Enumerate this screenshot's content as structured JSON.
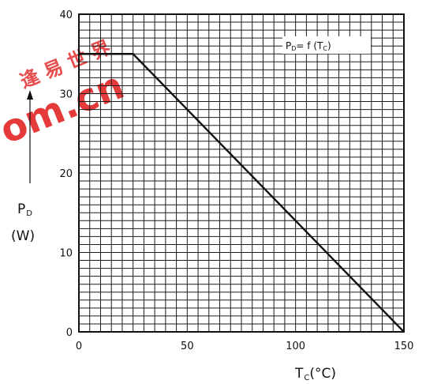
{
  "chart_data": {
    "type": "line",
    "xlabel": "T",
    "xlabel_sub": "C",
    "xlabel_unit": "(°C)",
    "ylabel": "P",
    "ylabel_sub": "D",
    "ylabel_unit": "(W)",
    "annotation": {
      "p": "P",
      "p_sub": "D",
      "mid": "= f (T",
      "t_sub": "C",
      "end": ")"
    },
    "xlim": [
      0,
      150
    ],
    "ylim": [
      0,
      40
    ],
    "x_ticks": [
      "0",
      "50",
      "100",
      "150"
    ],
    "y_ticks": [
      "0",
      "10",
      "20",
      "30",
      "40"
    ],
    "grid": true,
    "series": [
      {
        "x": [
          0,
          25,
          150
        ],
        "y": [
          35,
          35,
          0
        ]
      }
    ]
  },
  "watermark": {
    "line1": "逢 易 世 界",
    "line2": "om.cn"
  },
  "colors": {
    "ink": "#111111",
    "grid": "#1a1a1a",
    "watermark": "#e53a3a"
  }
}
